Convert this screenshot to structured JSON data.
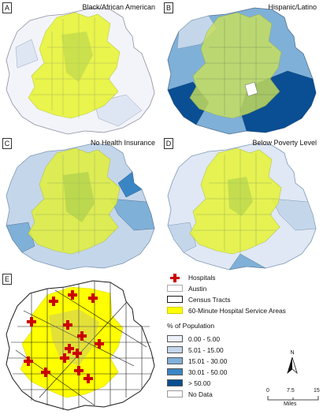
{
  "panels": {
    "a": {
      "letter": "A",
      "title": "Black/African American"
    },
    "b": {
      "letter": "B",
      "title": "Hispanic/Latino"
    },
    "c": {
      "letter": "C",
      "title": "No Health Insurance"
    },
    "d": {
      "letter": "D",
      "title": "Below Poverty Level"
    },
    "e": {
      "letter": "E",
      "title": ""
    }
  },
  "legend": {
    "hospitals": "Hospitals",
    "austin": "Austin",
    "census_tracts": "Census Tracts",
    "service_areas": "60-Minute Hospital Service Areas",
    "pct_heading": "% of Population",
    "classes": [
      {
        "label": "0.00 - 5.00",
        "color": "#eef1fa"
      },
      {
        "label": "5.01 - 15.00",
        "color": "#c4d6ea"
      },
      {
        "label": "15.01 - 30.00",
        "color": "#7fb0d8"
      },
      {
        "label": "30.01 - 50.00",
        "color": "#3a86c4"
      },
      {
        "label": "> 50.00",
        "color": "#0a4f93"
      }
    ],
    "no_data": "No Data"
  },
  "colors": {
    "hospital": "#cc0000",
    "service_area": "#ffff00",
    "service_overlay": "#e9f53a",
    "tract_outline": "#1a1a1a"
  },
  "north_arrow": {
    "label": "N"
  },
  "scale": {
    "ticks": [
      "0",
      "7.5",
      "15"
    ],
    "unit": "Miles"
  },
  "icons": [
    "hospital-cross-icon",
    "north-arrow-icon"
  ]
}
